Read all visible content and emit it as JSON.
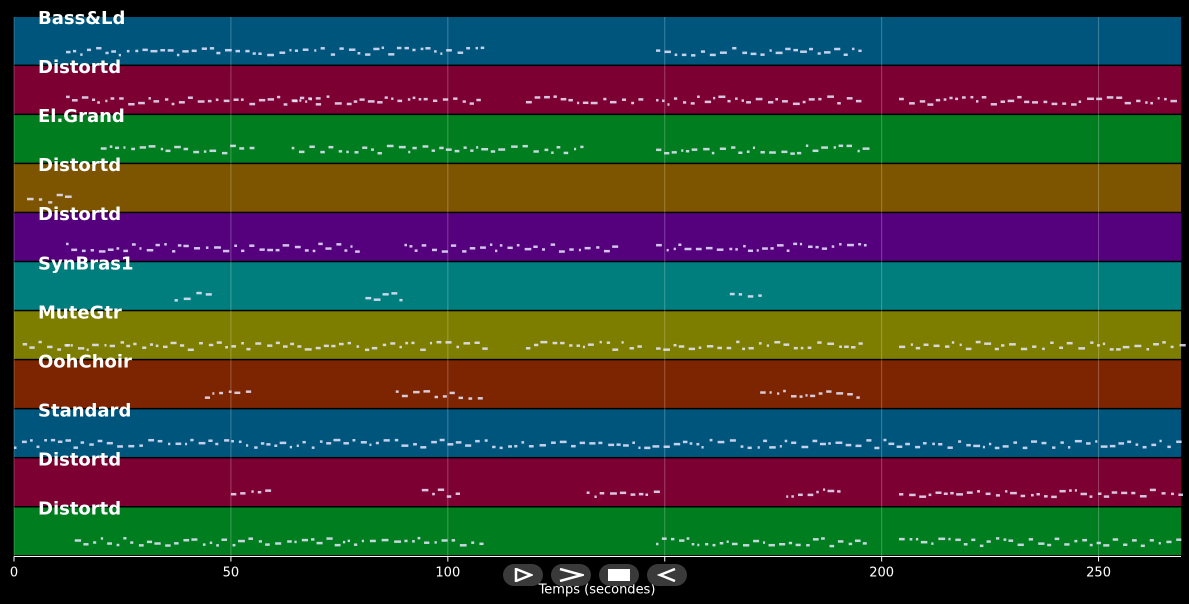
{
  "tracks": [
    {
      "name": "Bass&Ld",
      "color": "#00557d"
    },
    {
      "name": "Distortd",
      "color": "#7d0033"
    },
    {
      "name": "El.Grand",
      "color": "#007d1f"
    },
    {
      "name": "Distortd",
      "color": "#7d5500"
    },
    {
      "name": "Distortd",
      "color": "#55007d"
    },
    {
      "name": "SynBras1",
      "color": "#007d7d"
    },
    {
      "name": "MuteGtr",
      "color": "#7d7d00"
    },
    {
      "name": "OohChoir",
      "color": "#7d2400"
    },
    {
      "name": "Standard",
      "color": "#00557d"
    },
    {
      "name": "Distortd",
      "color": "#7d0033"
    },
    {
      "name": "Distortd",
      "color": "#007d1f"
    }
  ],
  "axis": {
    "label": "Temps (secondes)",
    "min": 0,
    "max": 269,
    "ticks": [
      "0",
      "50",
      "100",
      "150",
      "200",
      "250"
    ]
  },
  "controls": [
    {
      "name": "play-icon"
    },
    {
      "name": "fast-forward-icon"
    },
    {
      "name": "stop-icon"
    },
    {
      "name": "rewind-icon"
    }
  ],
  "note_activity": [
    [
      [
        12,
        108
      ],
      [
        148,
        196
      ]
    ],
    [
      [
        12,
        70
      ],
      [
        64,
        108
      ],
      [
        118,
        145
      ],
      [
        148,
        196
      ],
      [
        204,
        269
      ]
    ],
    [
      [
        20,
        55
      ],
      [
        64,
        132
      ],
      [
        148,
        196
      ]
    ],
    [
      [
        3,
        12
      ]
    ],
    [
      [
        12,
        80
      ],
      [
        90,
        140
      ],
      [
        148,
        196
      ]
    ],
    [
      [
        37,
        45
      ],
      [
        81,
        89
      ],
      [
        165,
        173
      ]
    ],
    [
      [
        2,
        12
      ],
      [
        12,
        108
      ],
      [
        118,
        145
      ],
      [
        148,
        196
      ],
      [
        204,
        269
      ]
    ],
    [
      [
        44,
        55
      ],
      [
        88,
        108
      ],
      [
        172,
        196
      ]
    ],
    [
      [
        0,
        269
      ]
    ],
    [
      [
        50,
        60
      ],
      [
        94,
        104
      ],
      [
        132,
        148
      ],
      [
        178,
        190
      ],
      [
        204,
        269
      ]
    ],
    [
      [
        14,
        108
      ],
      [
        148,
        196
      ],
      [
        204,
        269
      ]
    ]
  ]
}
